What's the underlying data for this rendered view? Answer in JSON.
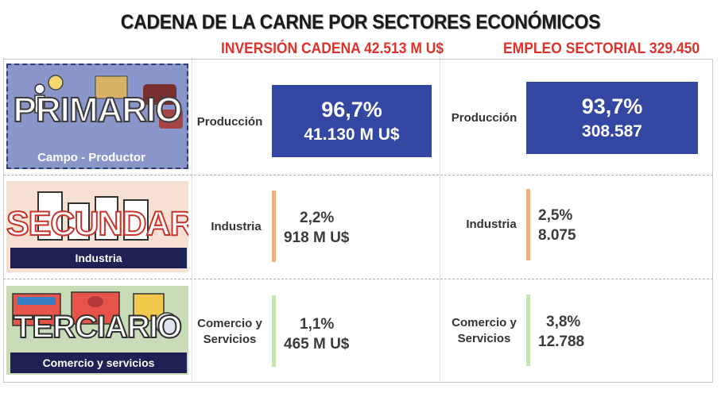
{
  "header": {
    "title": "CADENA DE LA CARNE POR SECTORES ECONÓMICOS",
    "investment": "INVERSIÓN CADENA  42.513 M U$",
    "employment": "EMPLEO SECTORIAL 329.450"
  },
  "colors": {
    "primary_box": "#3346a2",
    "industry_bar": "#f0b080",
    "services_bar": "#c8e4b0",
    "accent_red": "#e0312b"
  },
  "sectors": [
    {
      "name": "PRIMARIO",
      "label": "Campo - Productor"
    },
    {
      "name": "SECUNDARIO",
      "label": "Industria"
    },
    {
      "name": "TERCIARIO",
      "label": "Comercio y servicios"
    }
  ],
  "chart_data": [
    {
      "type": "table",
      "title": "INVERSIÓN CADENA  42.513 M U$",
      "rows": [
        {
          "category": "Producción",
          "percent_label": "96,7%",
          "value_label": "41.130 M U$",
          "percent": 96.7,
          "value": 41130
        },
        {
          "category": "Industria",
          "percent_label": "2,2%",
          "value_label": "918 M U$",
          "percent": 2.2,
          "value": 918
        },
        {
          "category": "Comercio y Servicios",
          "percent_label": "1,1%",
          "value_label": "465 M U$",
          "percent": 1.1,
          "value": 465
        }
      ]
    },
    {
      "type": "table",
      "title": "EMPLEO SECTORIAL 329.450",
      "rows": [
        {
          "category": "Producción",
          "percent_label": "93,7%",
          "value_label": "308.587",
          "percent": 93.7,
          "value": 308587
        },
        {
          "category": "Industria",
          "percent_label": "2,5%",
          "value_label": "8.075",
          "percent": 2.5,
          "value": 8075
        },
        {
          "category": "Comercio y Servicios",
          "percent_label": "3,8%",
          "value_label": "12.788",
          "percent": 3.8,
          "value": 12788
        }
      ]
    }
  ]
}
